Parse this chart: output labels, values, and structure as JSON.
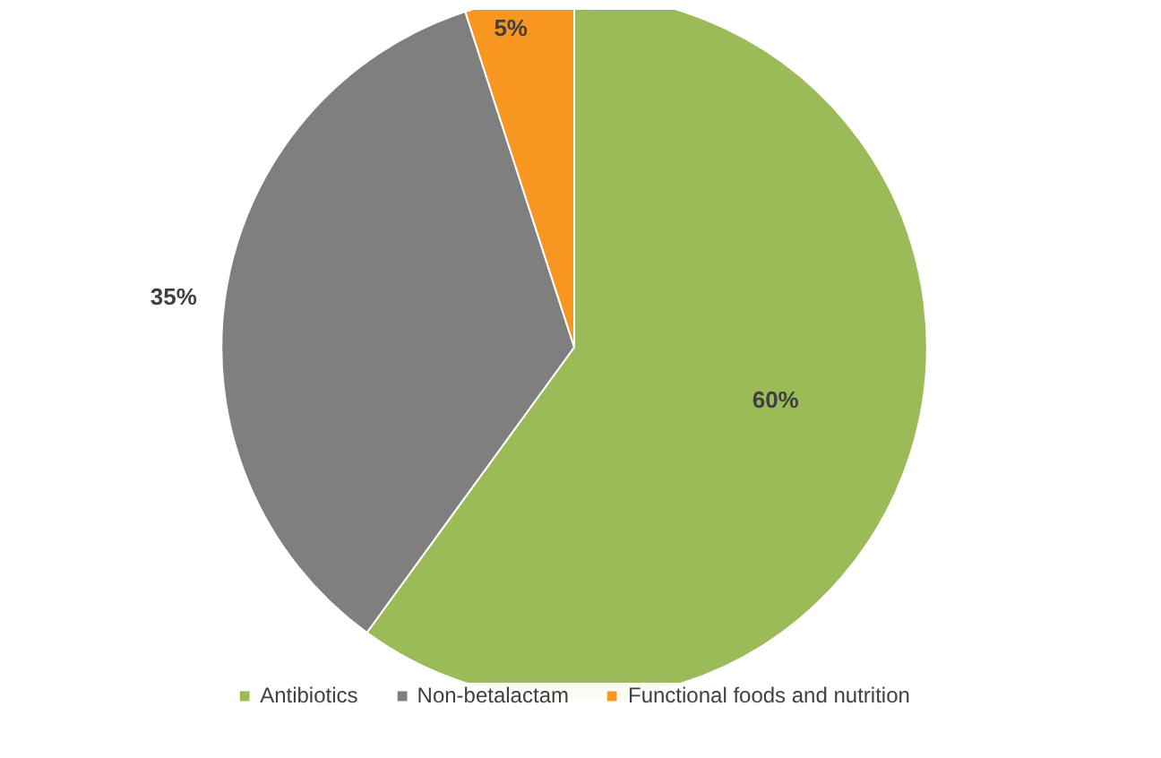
{
  "chart_data": {
    "type": "pie",
    "categories": [
      "Antibiotics",
      "Non-betalactam",
      "Functional foods and nutrition"
    ],
    "values": [
      60,
      35,
      5
    ],
    "colors": [
      "#9bbb59",
      "#7f7f7f",
      "#f79621"
    ],
    "value_labels": [
      "60%",
      "35%",
      "5%"
    ],
    "legend": "bottom"
  }
}
